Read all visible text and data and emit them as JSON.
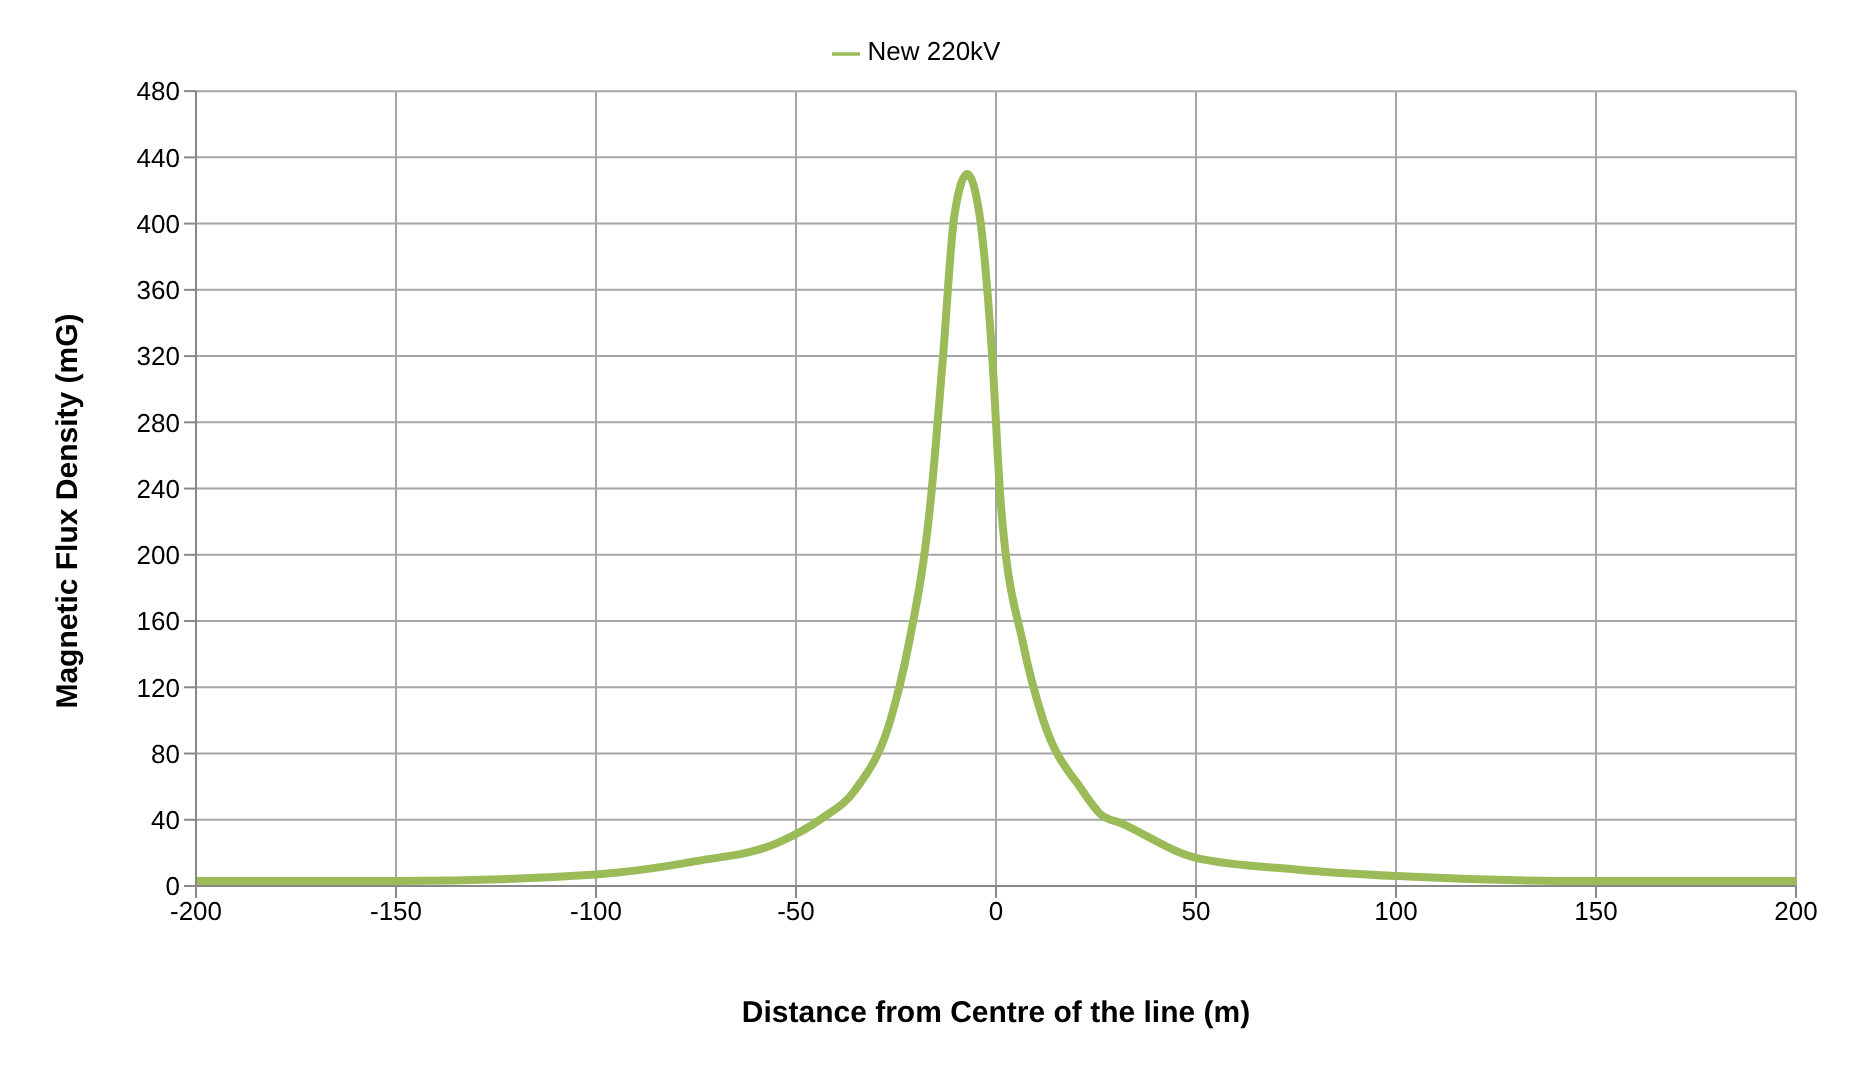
{
  "chart_data": {
    "type": "line",
    "xlabel": "Distance from Centre of the line (m)",
    "ylabel": "Magnetic Flux Density (mG)",
    "xlim": [
      -200,
      200
    ],
    "xticks": [
      -200,
      -150,
      -100,
      -50,
      0,
      50,
      100,
      150,
      200
    ],
    "ylim": [
      0,
      480
    ],
    "yticks": [
      0,
      40,
      80,
      120,
      160,
      200,
      240,
      280,
      320,
      360,
      400,
      440,
      480
    ],
    "grid": true,
    "legend": "top",
    "marker": "none",
    "line_style": "solid",
    "series": [
      {
        "name": "New 220kV",
        "color": "#9bbb59",
        "x": [
          -200,
          -150,
          -100,
          -75,
          -54.6,
          -43.4,
          -35.2,
          -26.3,
          -21.9,
          -16.4,
          -13.3,
          -10.4,
          -7.2,
          -4.1,
          -0.9,
          1.2,
          6.9,
          11.7,
          21.5,
          26.3,
          31.2,
          50,
          75,
          100,
          150,
          200
        ],
        "values": [
          3,
          3,
          7,
          15,
          26,
          41,
          58,
          101,
          145,
          231,
          318,
          405,
          430,
          405,
          318,
          231,
          145,
          101,
          58,
          43,
          38,
          17,
          10,
          6,
          3,
          3
        ]
      }
    ]
  }
}
